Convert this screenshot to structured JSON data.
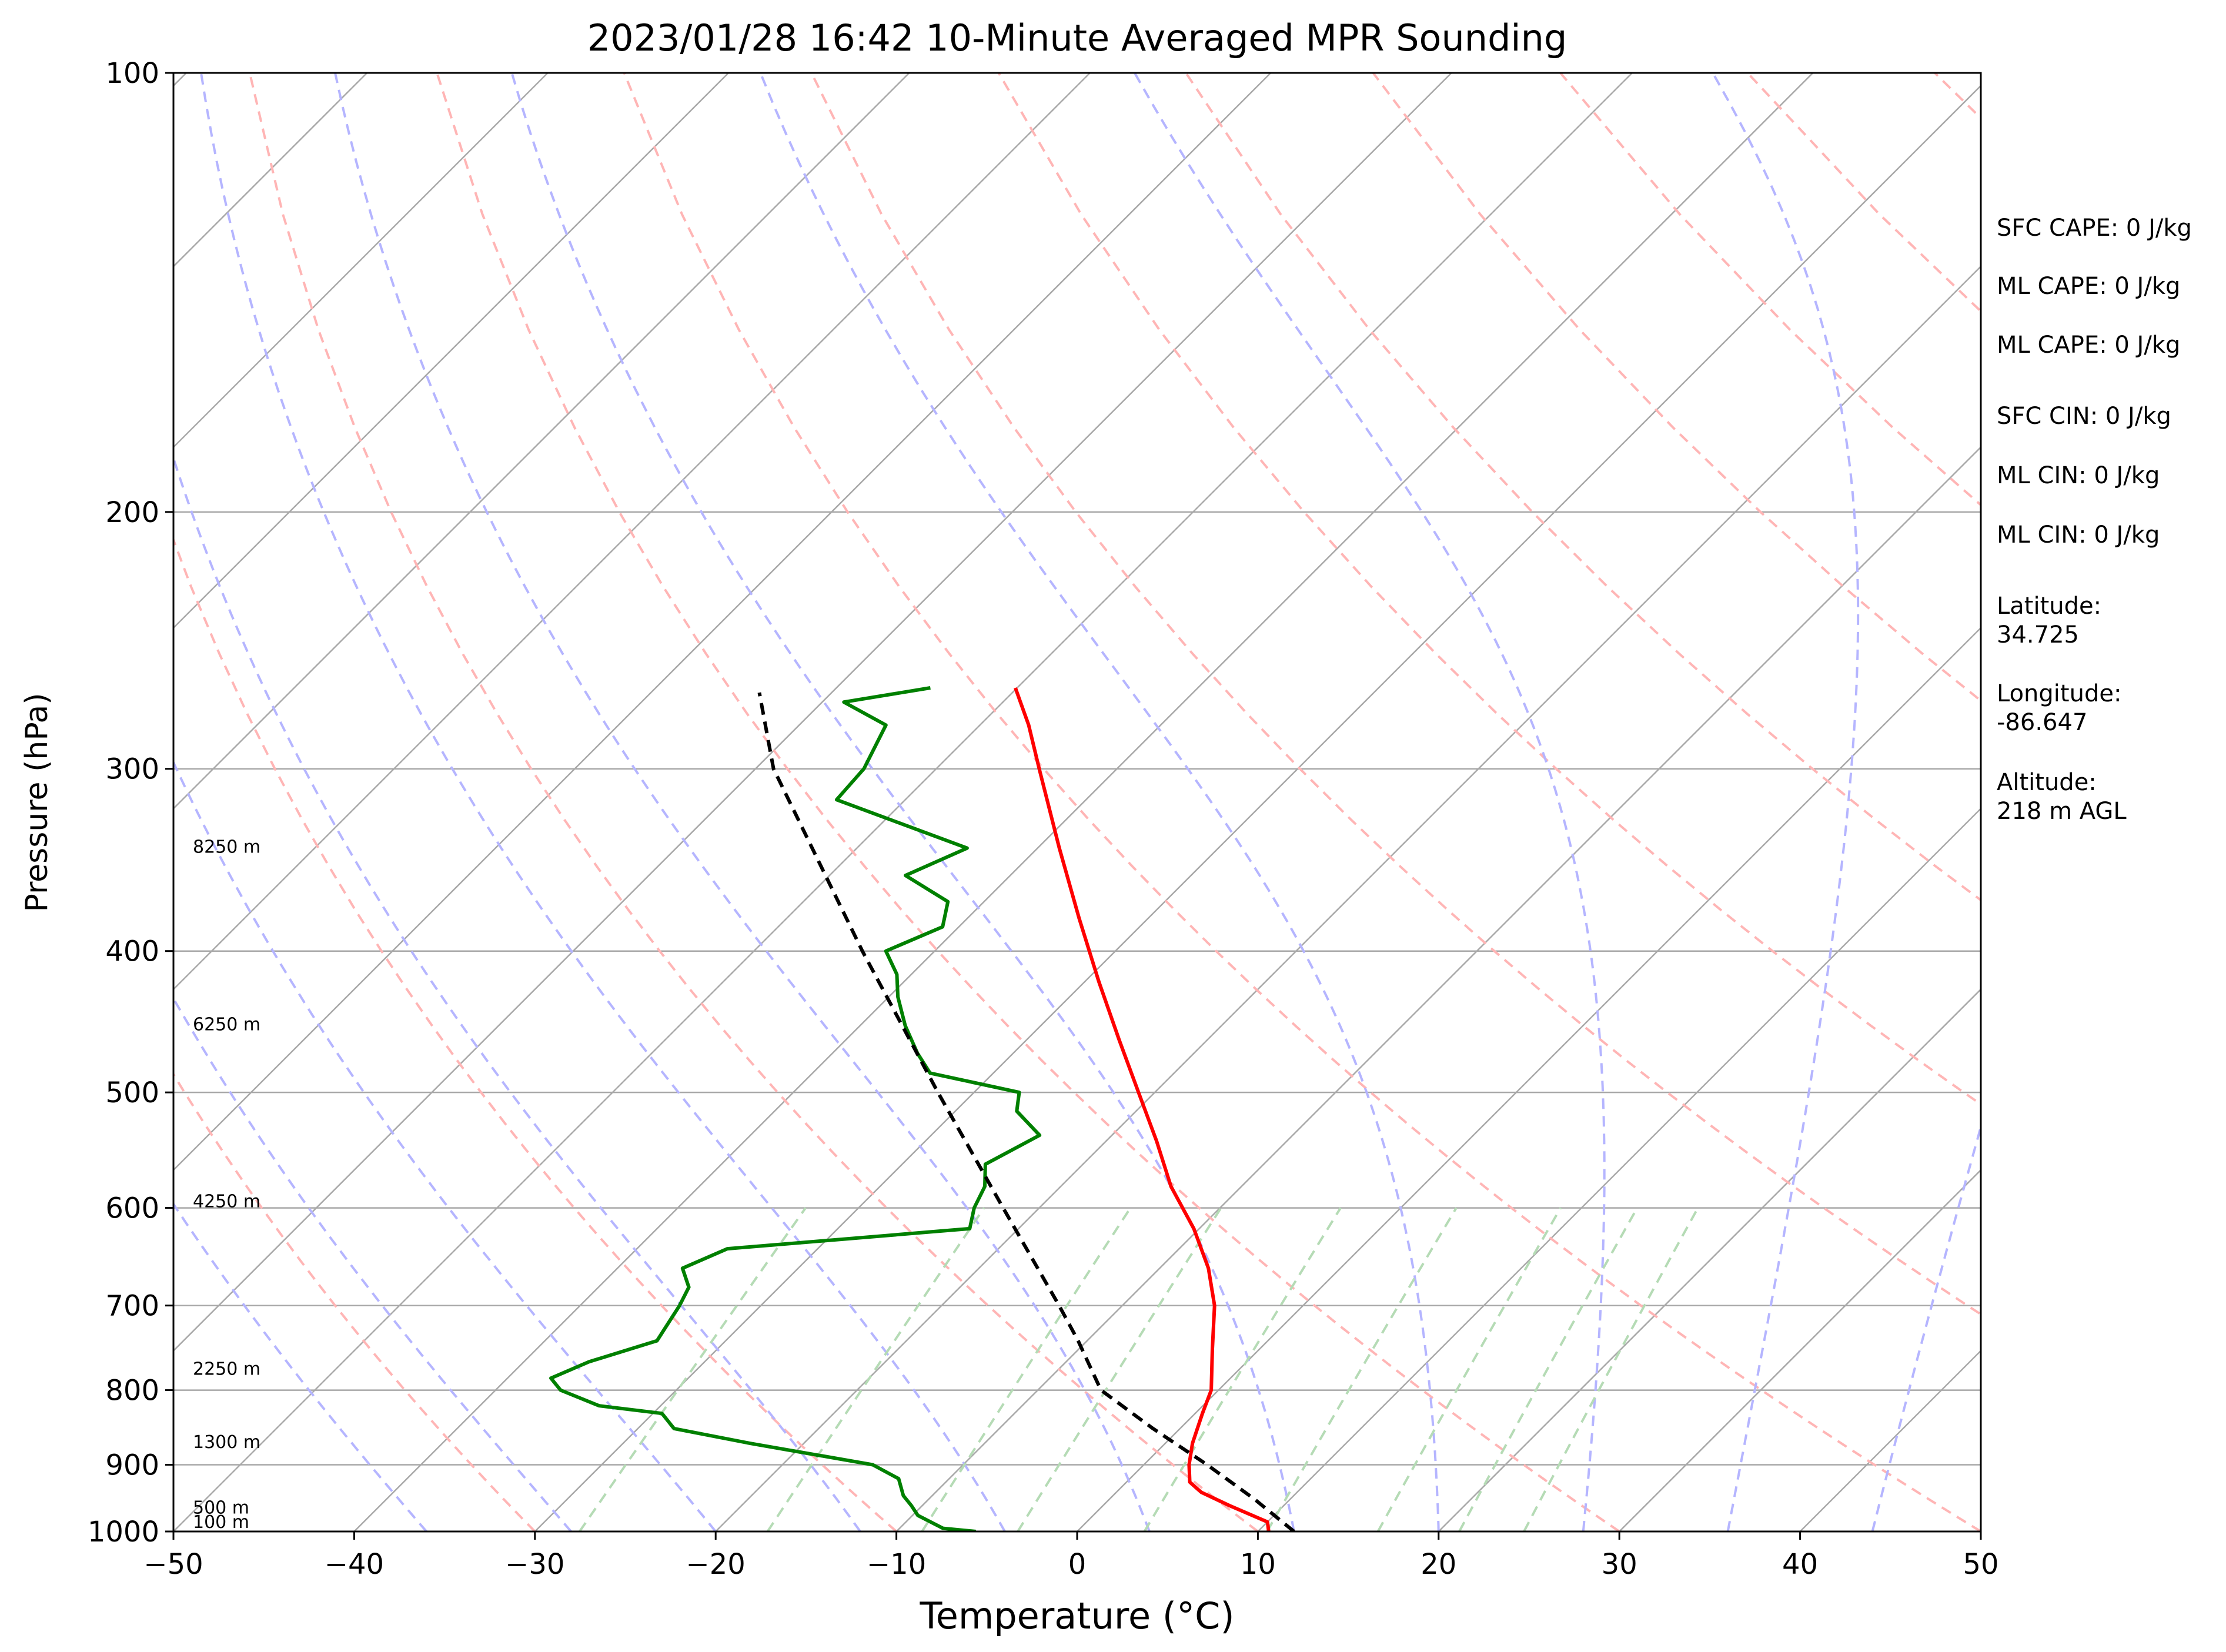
{
  "chart_data": {
    "type": "line",
    "title": "2023/01/28 16:42 10-Minute Averaged MPR Sounding",
    "xlabel": "Temperature (°C)",
    "ylabel": "Pressure (hPa)",
    "xlim": [
      -50,
      50
    ],
    "ylim": [
      1000,
      100
    ],
    "y_scale": "log",
    "skew": true,
    "grid": true,
    "x_ticks": [
      -50,
      -40,
      -30,
      -20,
      -10,
      0,
      10,
      20,
      30,
      40,
      50
    ],
    "x_tick_labels": [
      "−50",
      "−40",
      "−30",
      "−20",
      "−10",
      "0",
      "10",
      "20",
      "30",
      "40",
      "50"
    ],
    "y_ticks": [
      1000,
      900,
      800,
      700,
      600,
      500,
      400,
      300,
      200,
      100
    ],
    "y_tick_labels": [
      "1000",
      "900",
      "800",
      "700",
      "600",
      "500",
      "400",
      "300",
      "200",
      "100"
    ],
    "height_labels": [
      {
        "p": 1000,
        "label": "100 m"
      },
      {
        "p": 965,
        "label": "500 m"
      },
      {
        "p": 870,
        "label": "1300 m"
      },
      {
        "p": 775,
        "label": "2250 m"
      },
      {
        "p": 595,
        "label": "4250 m"
      },
      {
        "p": 450,
        "label": "6250 m"
      },
      {
        "p": 340,
        "label": "8250 m"
      }
    ],
    "series": [
      {
        "color": "#ff0000",
        "points": [
          {
            "p": 1000,
            "t": 10.6
          },
          {
            "p": 985,
            "t": 10.0
          },
          {
            "p": 960,
            "t": 7.0
          },
          {
            "p": 940,
            "t": 4.7
          },
          {
            "p": 925,
            "t": 3.5
          },
          {
            "p": 900,
            "t": 2.5
          },
          {
            "p": 870,
            "t": 1.5
          },
          {
            "p": 830,
            "t": 0.4
          },
          {
            "p": 800,
            "t": -0.4
          },
          {
            "p": 750,
            "t": -2.6
          },
          {
            "p": 700,
            "t": -4.9
          },
          {
            "p": 660,
            "t": -7.3
          },
          {
            "p": 620,
            "t": -10.3
          },
          {
            "p": 580,
            "t": -13.9
          },
          {
            "p": 540,
            "t": -17.2
          },
          {
            "p": 500,
            "t": -20.9
          },
          {
            "p": 460,
            "t": -24.9
          },
          {
            "p": 420,
            "t": -29.2
          },
          {
            "p": 380,
            "t": -33.8
          },
          {
            "p": 340,
            "t": -38.8
          },
          {
            "p": 300,
            "t": -44.3
          },
          {
            "p": 280,
            "t": -47.3
          },
          {
            "p": 264,
            "t": -50.1
          }
        ]
      },
      {
        "color": "#008000",
        "points": [
          {
            "p": 1000,
            "t": -5.6
          },
          {
            "p": 995,
            "t": -7.6
          },
          {
            "p": 975,
            "t": -9.7
          },
          {
            "p": 960,
            "t": -10.6
          },
          {
            "p": 945,
            "t": -11.6
          },
          {
            "p": 920,
            "t": -12.8
          },
          {
            "p": 900,
            "t": -15.0
          },
          {
            "p": 870,
            "t": -23.0
          },
          {
            "p": 850,
            "t": -28.0
          },
          {
            "p": 830,
            "t": -29.5
          },
          {
            "p": 820,
            "t": -33.4
          },
          {
            "p": 800,
            "t": -36.4
          },
          {
            "p": 785,
            "t": -37.6
          },
          {
            "p": 765,
            "t": -36.4
          },
          {
            "p": 740,
            "t": -33.8
          },
          {
            "p": 700,
            "t": -34.5
          },
          {
            "p": 680,
            "t": -35.0
          },
          {
            "p": 660,
            "t": -36.4
          },
          {
            "p": 640,
            "t": -35.0
          },
          {
            "p": 620,
            "t": -22.7
          },
          {
            "p": 600,
            "t": -23.6
          },
          {
            "p": 580,
            "t": -24.2
          },
          {
            "p": 560,
            "t": -25.4
          },
          {
            "p": 535,
            "t": -24.0
          },
          {
            "p": 515,
            "t": -26.6
          },
          {
            "p": 500,
            "t": -27.5
          },
          {
            "p": 485,
            "t": -33.5
          },
          {
            "p": 470,
            "t": -35.3
          },
          {
            "p": 450,
            "t": -37.5
          },
          {
            "p": 430,
            "t": -39.5
          },
          {
            "p": 415,
            "t": -40.8
          },
          {
            "p": 400,
            "t": -42.7
          },
          {
            "p": 385,
            "t": -40.9
          },
          {
            "p": 370,
            "t": -42.0
          },
          {
            "p": 355,
            "t": -45.8
          },
          {
            "p": 340,
            "t": -43.9
          },
          {
            "p": 315,
            "t": -53.8
          },
          {
            "p": 300,
            "t": -54.0
          },
          {
            "p": 280,
            "t": -55.2
          },
          {
            "p": 270,
            "t": -58.8
          },
          {
            "p": 264,
            "t": -54.8
          }
        ]
      },
      {
        "color": "#000000",
        "dashed": true,
        "points": [
          {
            "p": 1000,
            "t": 12.0
          },
          {
            "p": 950,
            "t": 8.0
          },
          {
            "p": 900,
            "t": 3.5
          },
          {
            "p": 850,
            "t": -1.5
          },
          {
            "p": 800,
            "t": -6.5
          },
          {
            "p": 780,
            "t": -7.8
          },
          {
            "p": 740,
            "t": -10.5
          },
          {
            "p": 700,
            "t": -13.5
          },
          {
            "p": 600,
            "t": -22.0
          },
          {
            "p": 500,
            "t": -32.0
          },
          {
            "p": 400,
            "t": -44.0
          },
          {
            "p": 300,
            "t": -59.0
          },
          {
            "p": 266,
            "t": -64.0
          }
        ]
      }
    ],
    "annotations": [
      "SFC CAPE: 0 J/kg",
      "ML CAPE: 0 J/kg",
      "ML CAPE: 0 J/kg",
      "SFC CIN: 0 J/kg",
      "ML CIN: 0 J/kg",
      "ML CIN: 0 J/kg",
      "Latitude:\n34.725",
      "Longitude:\n-86.647",
      "Altitude:\n218 m AGL"
    ],
    "colors": {
      "isotherms": "#a8a8a8",
      "isobars": "#a8a8a8",
      "dry_adiabats": "#ffb5b5",
      "moist_adiabats": "#b5b5ff",
      "mixing_ratio": "#b5dbb5"
    }
  }
}
